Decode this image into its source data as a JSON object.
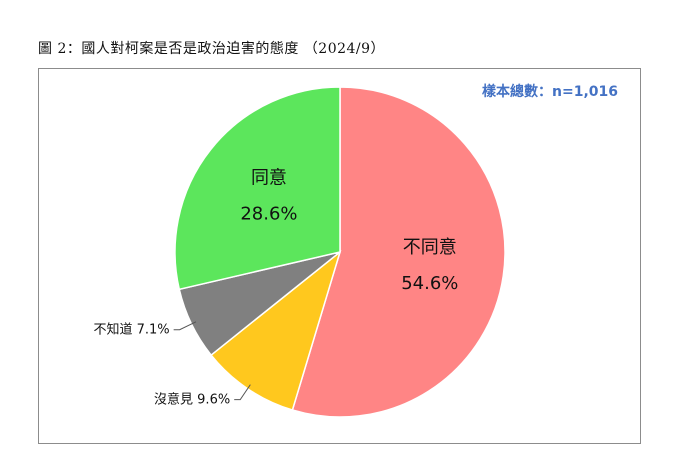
{
  "figure": {
    "title": "圖 2：國人對柯案是否是政治迫害的態度 （2024/9）",
    "sample_note": "樣本總數：n=1,016"
  },
  "chart_data": {
    "type": "pie",
    "title": "圖 2：國人對柯案是否是政治迫害的態度 （2024/9）",
    "slices": [
      {
        "label": "不同意",
        "value": 54.6,
        "display": "54.6%",
        "color": "#ff8585",
        "label_position": "inside"
      },
      {
        "label": "沒意見",
        "value": 9.6,
        "display": "9.6%",
        "color": "#ffc81e",
        "label_position": "outside"
      },
      {
        "label": "不知道",
        "value": 7.1,
        "display": "7.1%",
        "color": "#808080",
        "label_position": "outside"
      },
      {
        "label": "同意",
        "value": 28.6,
        "display": "28.6%",
        "color": "#5ce65c",
        "label_position": "inside"
      }
    ],
    "start_angle": "12 o'clock",
    "direction": "clockwise",
    "legend": "none"
  }
}
